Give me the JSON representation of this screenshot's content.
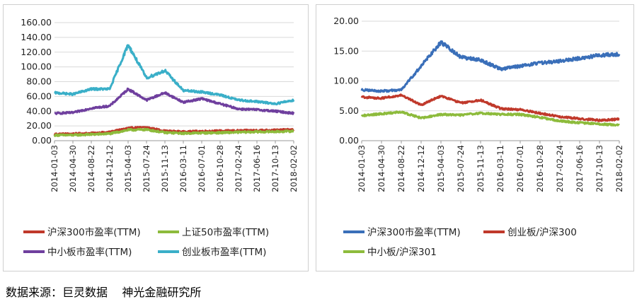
{
  "source_note": "数据来源：巨灵数据    神光金融研究所",
  "chart_data": [
    {
      "type": "line",
      "x": [
        "2014-01-03",
        "2014-04-30",
        "2014-08-22",
        "2014-12-12",
        "2015-04-03",
        "2015-07-24",
        "2015-11-13",
        "2016-03-11",
        "2016-07-01",
        "2016-10-28",
        "2017-02-24",
        "2017-06-16",
        "2017-10-13",
        "2018-02-02"
      ],
      "ylim": [
        0,
        160
      ],
      "yticks": [
        "0.00",
        "20.00",
        "40.00",
        "60.00",
        "80.00",
        "100.00",
        "120.00",
        "140.00",
        "160.00"
      ],
      "grid": true,
      "legend_position": "bottom",
      "series": [
        {
          "name": "沪深300市盈率(TTM)",
          "color": "#c0392b",
          "values": [
            9,
            9.2,
            10,
            11.5,
            17,
            18,
            13,
            12,
            12.8,
            13.2,
            13.5,
            14,
            14.3,
            15
          ]
        },
        {
          "name": "上证50市盈率(TTM)",
          "color": "#8dbb3c",
          "values": [
            7.5,
            7.6,
            8.5,
            9.5,
            14.5,
            15,
            11,
            10,
            10.5,
            10.8,
            11.5,
            12,
            12.2,
            13
          ]
        },
        {
          "name": "中小板市盈率(TTM)",
          "color": "#6f3f9e",
          "values": [
            37,
            38,
            44,
            47,
            70,
            55,
            65,
            52,
            57,
            50,
            43,
            42,
            40,
            37
          ]
        },
        {
          "name": "创业板市盈率(TTM)",
          "color": "#3aafc8",
          "values": [
            65,
            63,
            70,
            70,
            130,
            85,
            95,
            68,
            66,
            62,
            55,
            53,
            50,
            55
          ]
        }
      ]
    },
    {
      "type": "line",
      "x": [
        "2014-01-03",
        "2014-04-30",
        "2014-08-22",
        "2014-12-12",
        "2015-04-03",
        "2015-07-24",
        "2015-11-13",
        "2016-03-11",
        "2016-07-01",
        "2016-10-28",
        "2017-02-24",
        "2017-06-16",
        "2017-10-13",
        "2018-02-02"
      ],
      "ylim": [
        0,
        20
      ],
      "yticks": [
        "0.00",
        "5.00",
        "10.00",
        "15.00",
        "20.00"
      ],
      "grid": true,
      "legend_position": "bottom",
      "series": [
        {
          "name": "沪深300市盈率(TTM)",
          "color": "#3a6fb9",
          "values": [
            8.5,
            8.3,
            8.5,
            12.5,
            16.5,
            14,
            13.5,
            12,
            12.5,
            13,
            13.3,
            13.8,
            14.3,
            14.5
          ]
        },
        {
          "name": "创业板/沪深300",
          "color": "#c0392b",
          "values": [
            7.3,
            7.1,
            7.6,
            6,
            7.5,
            6.3,
            6.8,
            5.4,
            5.2,
            4.6,
            4,
            3.7,
            3.4,
            3.6
          ]
        },
        {
          "name": "中小板/沪深301",
          "color": "#8dbb3c",
          "values": [
            4.2,
            4.5,
            4.8,
            3.8,
            4.4,
            4.3,
            4.6,
            4.4,
            4.4,
            3.9,
            3.3,
            3,
            2.8,
            2.6
          ]
        }
      ]
    }
  ]
}
